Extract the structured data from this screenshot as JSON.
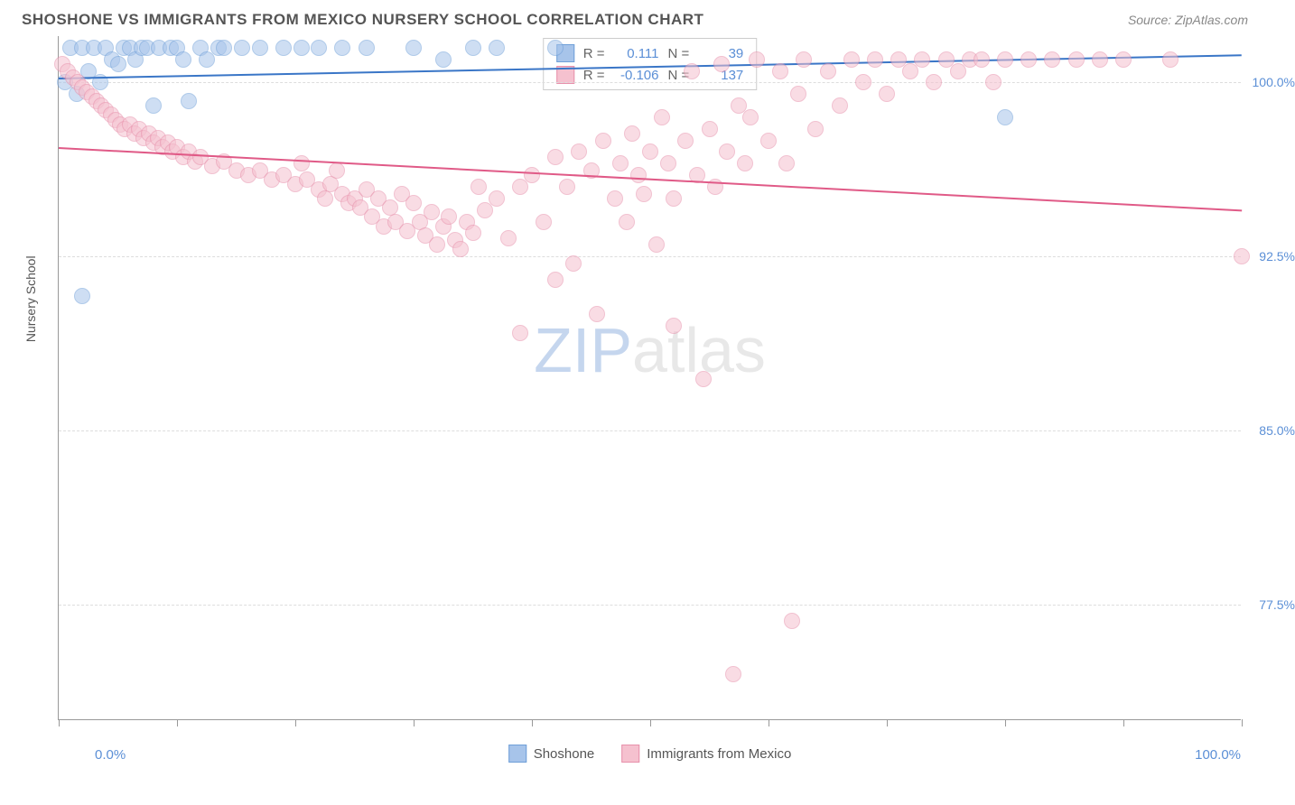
{
  "header": {
    "title": "SHOSHONE VS IMMIGRANTS FROM MEXICO NURSERY SCHOOL CORRELATION CHART",
    "source": "Source: ZipAtlas.com"
  },
  "chart": {
    "type": "scatter",
    "y_axis_title": "Nursery School",
    "xlim": [
      0,
      100
    ],
    "ylim": [
      72.5,
      102
    ],
    "x_start_label": "0.0%",
    "x_end_label": "100.0%",
    "x_ticks": [
      0,
      10,
      20,
      30,
      40,
      50,
      60,
      70,
      80,
      90,
      100
    ],
    "y_gridlines": [
      {
        "value": 100.0,
        "label": "100.0%"
      },
      {
        "value": 92.5,
        "label": "92.5%"
      },
      {
        "value": 85.0,
        "label": "85.0%"
      },
      {
        "value": 77.5,
        "label": "77.5%"
      }
    ],
    "grid_color": "#dddddd",
    "background_color": "#ffffff",
    "axis_color": "#999999",
    "tick_label_color": "#5b8fd6",
    "point_radius": 9,
    "point_opacity": 0.55,
    "series": [
      {
        "name": "Shoshone",
        "color_fill": "#a7c4ea",
        "color_stroke": "#6f9fd8",
        "R_label": "R =",
        "R_value": "0.111",
        "N_label": "N =",
        "N_value": "39",
        "trend": {
          "y_at_x0": 100.2,
          "y_at_x100": 101.2,
          "color": "#3a76c7",
          "width": 2
        },
        "points": [
          [
            0.5,
            100.0
          ],
          [
            1.0,
            101.5
          ],
          [
            1.5,
            99.5
          ],
          [
            2.0,
            101.5
          ],
          [
            2.5,
            100.5
          ],
          [
            3.0,
            101.5
          ],
          [
            3.5,
            100.0
          ],
          [
            4.0,
            101.5
          ],
          [
            4.5,
            101.0
          ],
          [
            5.0,
            100.8
          ],
          [
            5.5,
            101.5
          ],
          [
            6.0,
            101.5
          ],
          [
            6.5,
            101.0
          ],
          [
            7.0,
            101.5
          ],
          [
            7.5,
            101.5
          ],
          [
            8.0,
            99.0
          ],
          [
            8.5,
            101.5
          ],
          [
            9.5,
            101.5
          ],
          [
            10.0,
            101.5
          ],
          [
            10.5,
            101.0
          ],
          [
            11.0,
            99.2
          ],
          [
            12.0,
            101.5
          ],
          [
            12.5,
            101.0
          ],
          [
            13.5,
            101.5
          ],
          [
            14.0,
            101.5
          ],
          [
            15.5,
            101.5
          ],
          [
            17.0,
            101.5
          ],
          [
            19.0,
            101.5
          ],
          [
            20.5,
            101.5
          ],
          [
            22.0,
            101.5
          ],
          [
            24.0,
            101.5
          ],
          [
            26.0,
            101.5
          ],
          [
            30.0,
            101.5
          ],
          [
            32.5,
            101.0
          ],
          [
            35.0,
            101.5
          ],
          [
            37.0,
            101.5
          ],
          [
            2.0,
            90.8
          ],
          [
            80.0,
            98.5
          ],
          [
            42.0,
            101.5
          ]
        ]
      },
      {
        "name": "Immigrants from Mexico",
        "color_fill": "#f5c1cf",
        "color_stroke": "#e790ab",
        "R_label": "R =",
        "R_value": "-0.106",
        "N_label": "N =",
        "N_value": "137",
        "trend": {
          "y_at_x0": 97.2,
          "y_at_x100": 94.5,
          "color": "#e05a87",
          "width": 2
        },
        "points": [
          [
            0.3,
            100.8
          ],
          [
            0.8,
            100.5
          ],
          [
            1.2,
            100.2
          ],
          [
            1.6,
            100.0
          ],
          [
            2.0,
            99.8
          ],
          [
            2.4,
            99.6
          ],
          [
            2.8,
            99.4
          ],
          [
            3.2,
            99.2
          ],
          [
            3.6,
            99.0
          ],
          [
            4.0,
            98.8
          ],
          [
            4.4,
            98.6
          ],
          [
            4.8,
            98.4
          ],
          [
            5.2,
            98.2
          ],
          [
            5.6,
            98.0
          ],
          [
            6.0,
            98.2
          ],
          [
            6.4,
            97.8
          ],
          [
            6.8,
            98.0
          ],
          [
            7.2,
            97.6
          ],
          [
            7.6,
            97.8
          ],
          [
            8.0,
            97.4
          ],
          [
            8.4,
            97.6
          ],
          [
            8.8,
            97.2
          ],
          [
            9.2,
            97.4
          ],
          [
            9.6,
            97.0
          ],
          [
            10.0,
            97.2
          ],
          [
            10.5,
            96.8
          ],
          [
            11.0,
            97.0
          ],
          [
            11.5,
            96.6
          ],
          [
            12.0,
            96.8
          ],
          [
            13.0,
            96.4
          ],
          [
            14.0,
            96.6
          ],
          [
            15.0,
            96.2
          ],
          [
            16.0,
            96.0
          ],
          [
            17.0,
            96.2
          ],
          [
            18.0,
            95.8
          ],
          [
            19.0,
            96.0
          ],
          [
            20.0,
            95.6
          ],
          [
            20.5,
            96.5
          ],
          [
            21.0,
            95.8
          ],
          [
            22.0,
            95.4
          ],
          [
            22.5,
            95.0
          ],
          [
            23.0,
            95.6
          ],
          [
            23.5,
            96.2
          ],
          [
            24.0,
            95.2
          ],
          [
            24.5,
            94.8
          ],
          [
            25.0,
            95.0
          ],
          [
            25.5,
            94.6
          ],
          [
            26.0,
            95.4
          ],
          [
            26.5,
            94.2
          ],
          [
            27.0,
            95.0
          ],
          [
            27.5,
            93.8
          ],
          [
            28.0,
            94.6
          ],
          [
            28.5,
            94.0
          ],
          [
            29.0,
            95.2
          ],
          [
            29.5,
            93.6
          ],
          [
            30.0,
            94.8
          ],
          [
            30.5,
            94.0
          ],
          [
            31.0,
            93.4
          ],
          [
            31.5,
            94.4
          ],
          [
            32.0,
            93.0
          ],
          [
            32.5,
            93.8
          ],
          [
            33.0,
            94.2
          ],
          [
            33.5,
            93.2
          ],
          [
            34.0,
            92.8
          ],
          [
            34.5,
            94.0
          ],
          [
            35.0,
            93.5
          ],
          [
            35.5,
            95.5
          ],
          [
            36.0,
            94.5
          ],
          [
            37.0,
            95.0
          ],
          [
            38.0,
            93.3
          ],
          [
            39.0,
            95.5
          ],
          [
            39.0,
            89.2
          ],
          [
            40.0,
            96.0
          ],
          [
            41.0,
            94.0
          ],
          [
            42.0,
            96.8
          ],
          [
            42.0,
            91.5
          ],
          [
            43.0,
            95.5
          ],
          [
            43.5,
            92.2
          ],
          [
            44.0,
            97.0
          ],
          [
            45.0,
            96.2
          ],
          [
            45.5,
            90.0
          ],
          [
            46.0,
            97.5
          ],
          [
            47.0,
            95.0
          ],
          [
            47.5,
            96.5
          ],
          [
            48.0,
            94.0
          ],
          [
            48.5,
            97.8
          ],
          [
            49.0,
            96.0
          ],
          [
            49.5,
            95.2
          ],
          [
            50.0,
            97.0
          ],
          [
            50.5,
            93.0
          ],
          [
            51.0,
            98.5
          ],
          [
            51.5,
            96.5
          ],
          [
            52.0,
            95.0
          ],
          [
            52.0,
            89.5
          ],
          [
            53.0,
            97.5
          ],
          [
            53.5,
            100.5
          ],
          [
            54.0,
            96.0
          ],
          [
            54.5,
            87.2
          ],
          [
            55.0,
            98.0
          ],
          [
            55.5,
            95.5
          ],
          [
            56.0,
            100.8
          ],
          [
            56.5,
            97.0
          ],
          [
            57.0,
            74.5
          ],
          [
            57.5,
            99.0
          ],
          [
            58.0,
            96.5
          ],
          [
            58.5,
            98.5
          ],
          [
            59.0,
            101.0
          ],
          [
            60.0,
            97.5
          ],
          [
            61.0,
            100.5
          ],
          [
            61.5,
            96.5
          ],
          [
            62.0,
            76.8
          ],
          [
            62.5,
            99.5
          ],
          [
            63.0,
            101.0
          ],
          [
            64.0,
            98.0
          ],
          [
            65.0,
            100.5
          ],
          [
            66.0,
            99.0
          ],
          [
            67.0,
            101.0
          ],
          [
            68.0,
            100.0
          ],
          [
            69.0,
            101.0
          ],
          [
            70.0,
            99.5
          ],
          [
            71.0,
            101.0
          ],
          [
            72.0,
            100.5
          ],
          [
            73.0,
            101.0
          ],
          [
            74.0,
            100.0
          ],
          [
            75.0,
            101.0
          ],
          [
            76.0,
            100.5
          ],
          [
            77.0,
            101.0
          ],
          [
            78.0,
            101.0
          ],
          [
            79.0,
            100.0
          ],
          [
            80.0,
            101.0
          ],
          [
            82.0,
            101.0
          ],
          [
            84.0,
            101.0
          ],
          [
            86.0,
            101.0
          ],
          [
            88.0,
            101.0
          ],
          [
            90.0,
            101.0
          ],
          [
            94.0,
            101.0
          ],
          [
            100.0,
            92.5
          ]
        ]
      }
    ],
    "watermark": {
      "part1": "ZIP",
      "part2": "atlas"
    }
  },
  "bottom_legend": {
    "series1": "Shoshone",
    "series2": "Immigrants from Mexico"
  }
}
